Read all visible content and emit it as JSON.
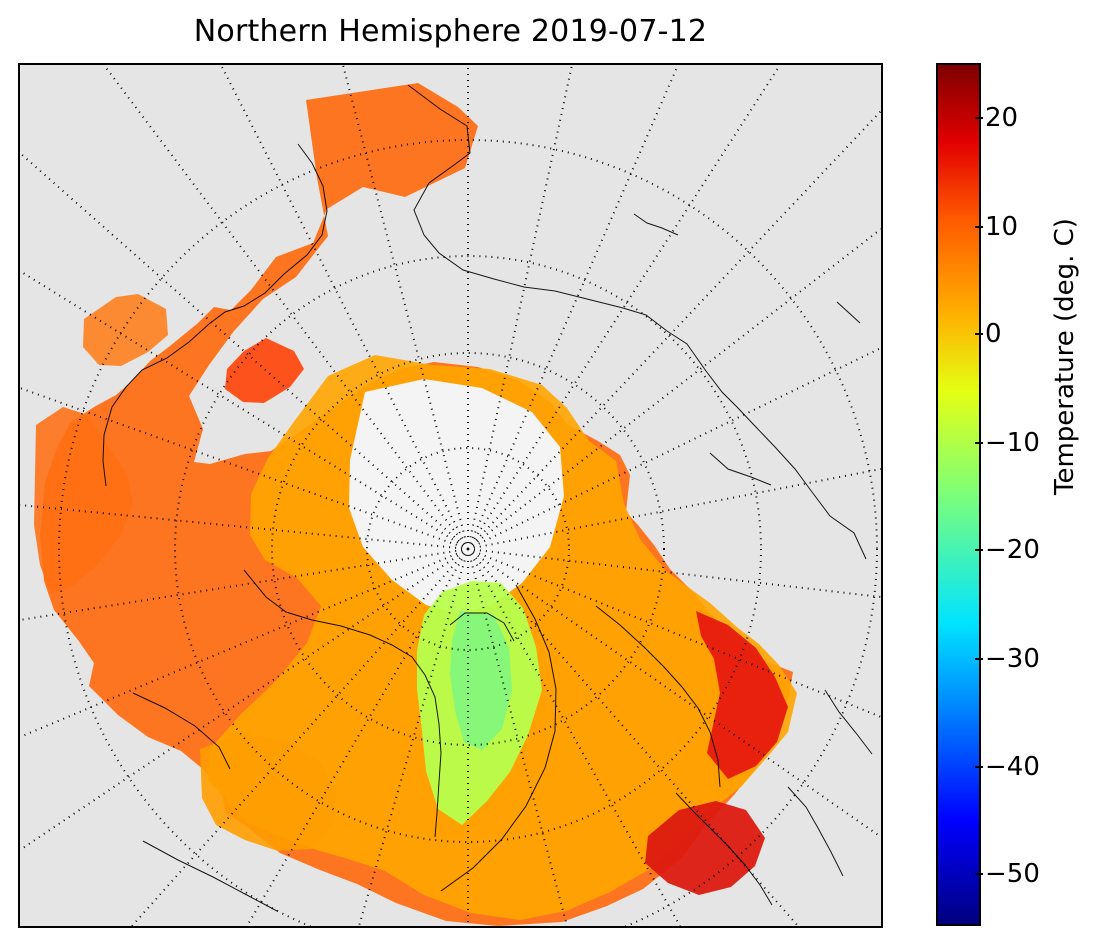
{
  "title": "Northern Hemisphere 2019-07-12",
  "colorbar": {
    "label": "Temperature (deg. C)",
    "ticks": [
      "20",
      "10",
      "0",
      "−10",
      "−20",
      "−30",
      "−40",
      "−50"
    ],
    "range": [
      -55,
      25
    ],
    "colormap": "jet"
  },
  "map": {
    "projection": "north-polar-stereographic",
    "background": "#e5e5e5",
    "coastline_color": "#000000",
    "grid_style": "dotted"
  }
}
